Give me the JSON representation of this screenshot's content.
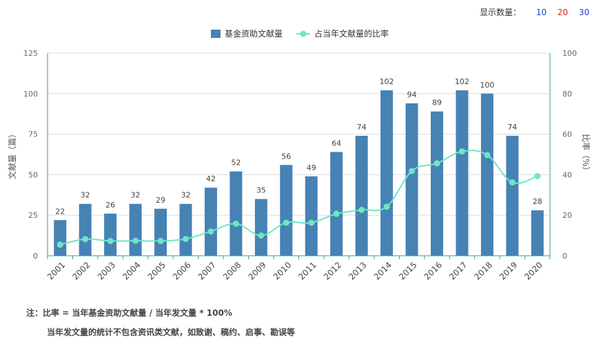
{
  "controls": {
    "label": "显示数量：",
    "options": [
      {
        "value": "10",
        "color": "#1a3cd6"
      },
      {
        "value": "20",
        "color": "#e01b1b"
      },
      {
        "value": "30",
        "color": "#1a3cd6"
      }
    ]
  },
  "notes": {
    "line1": "注：比率 = 当年基金资助文献量 / 当年发文量 * 100%",
    "line2": "当年发文量的统计不包含资讯类文献，如致谢、稿约、启事、勘误等"
  },
  "chart_data": {
    "type": "bar",
    "categories": [
      "2001",
      "2002",
      "2003",
      "2004",
      "2005",
      "2006",
      "2007",
      "2008",
      "2009",
      "2010",
      "2011",
      "2012",
      "2013",
      "2014",
      "2015",
      "2016",
      "2017",
      "2018",
      "2019",
      "2020"
    ],
    "series": [
      {
        "name": "基金资助文献量",
        "type": "bar",
        "axis": "left",
        "color": "#4682b4",
        "values": [
          22,
          32,
          26,
          32,
          29,
          32,
          42,
          52,
          35,
          56,
          49,
          64,
          74,
          102,
          94,
          89,
          102,
          100,
          74,
          28
        ]
      },
      {
        "name": "占当年文献量的比率",
        "type": "line",
        "axis": "right",
        "color": "#6fe6c4",
        "values": [
          5.5,
          8.2,
          7.3,
          7.4,
          7.3,
          8.3,
          12.0,
          15.8,
          10.0,
          16.3,
          16.3,
          20.7,
          22.6,
          24.2,
          41.8,
          45.6,
          51.5,
          49.7,
          36.2,
          39.3
        ]
      }
    ],
    "ylabel": "文献量（篇）",
    "y2label": "比率（%）",
    "ylim": [
      0,
      125
    ],
    "yticks": [
      0,
      25,
      50,
      75,
      100,
      125
    ],
    "y2lim": [
      0,
      100
    ],
    "y2ticks": [
      0,
      20,
      40,
      60,
      80,
      100
    ],
    "grid": true,
    "legend": "top-center",
    "data_labels": true
  }
}
